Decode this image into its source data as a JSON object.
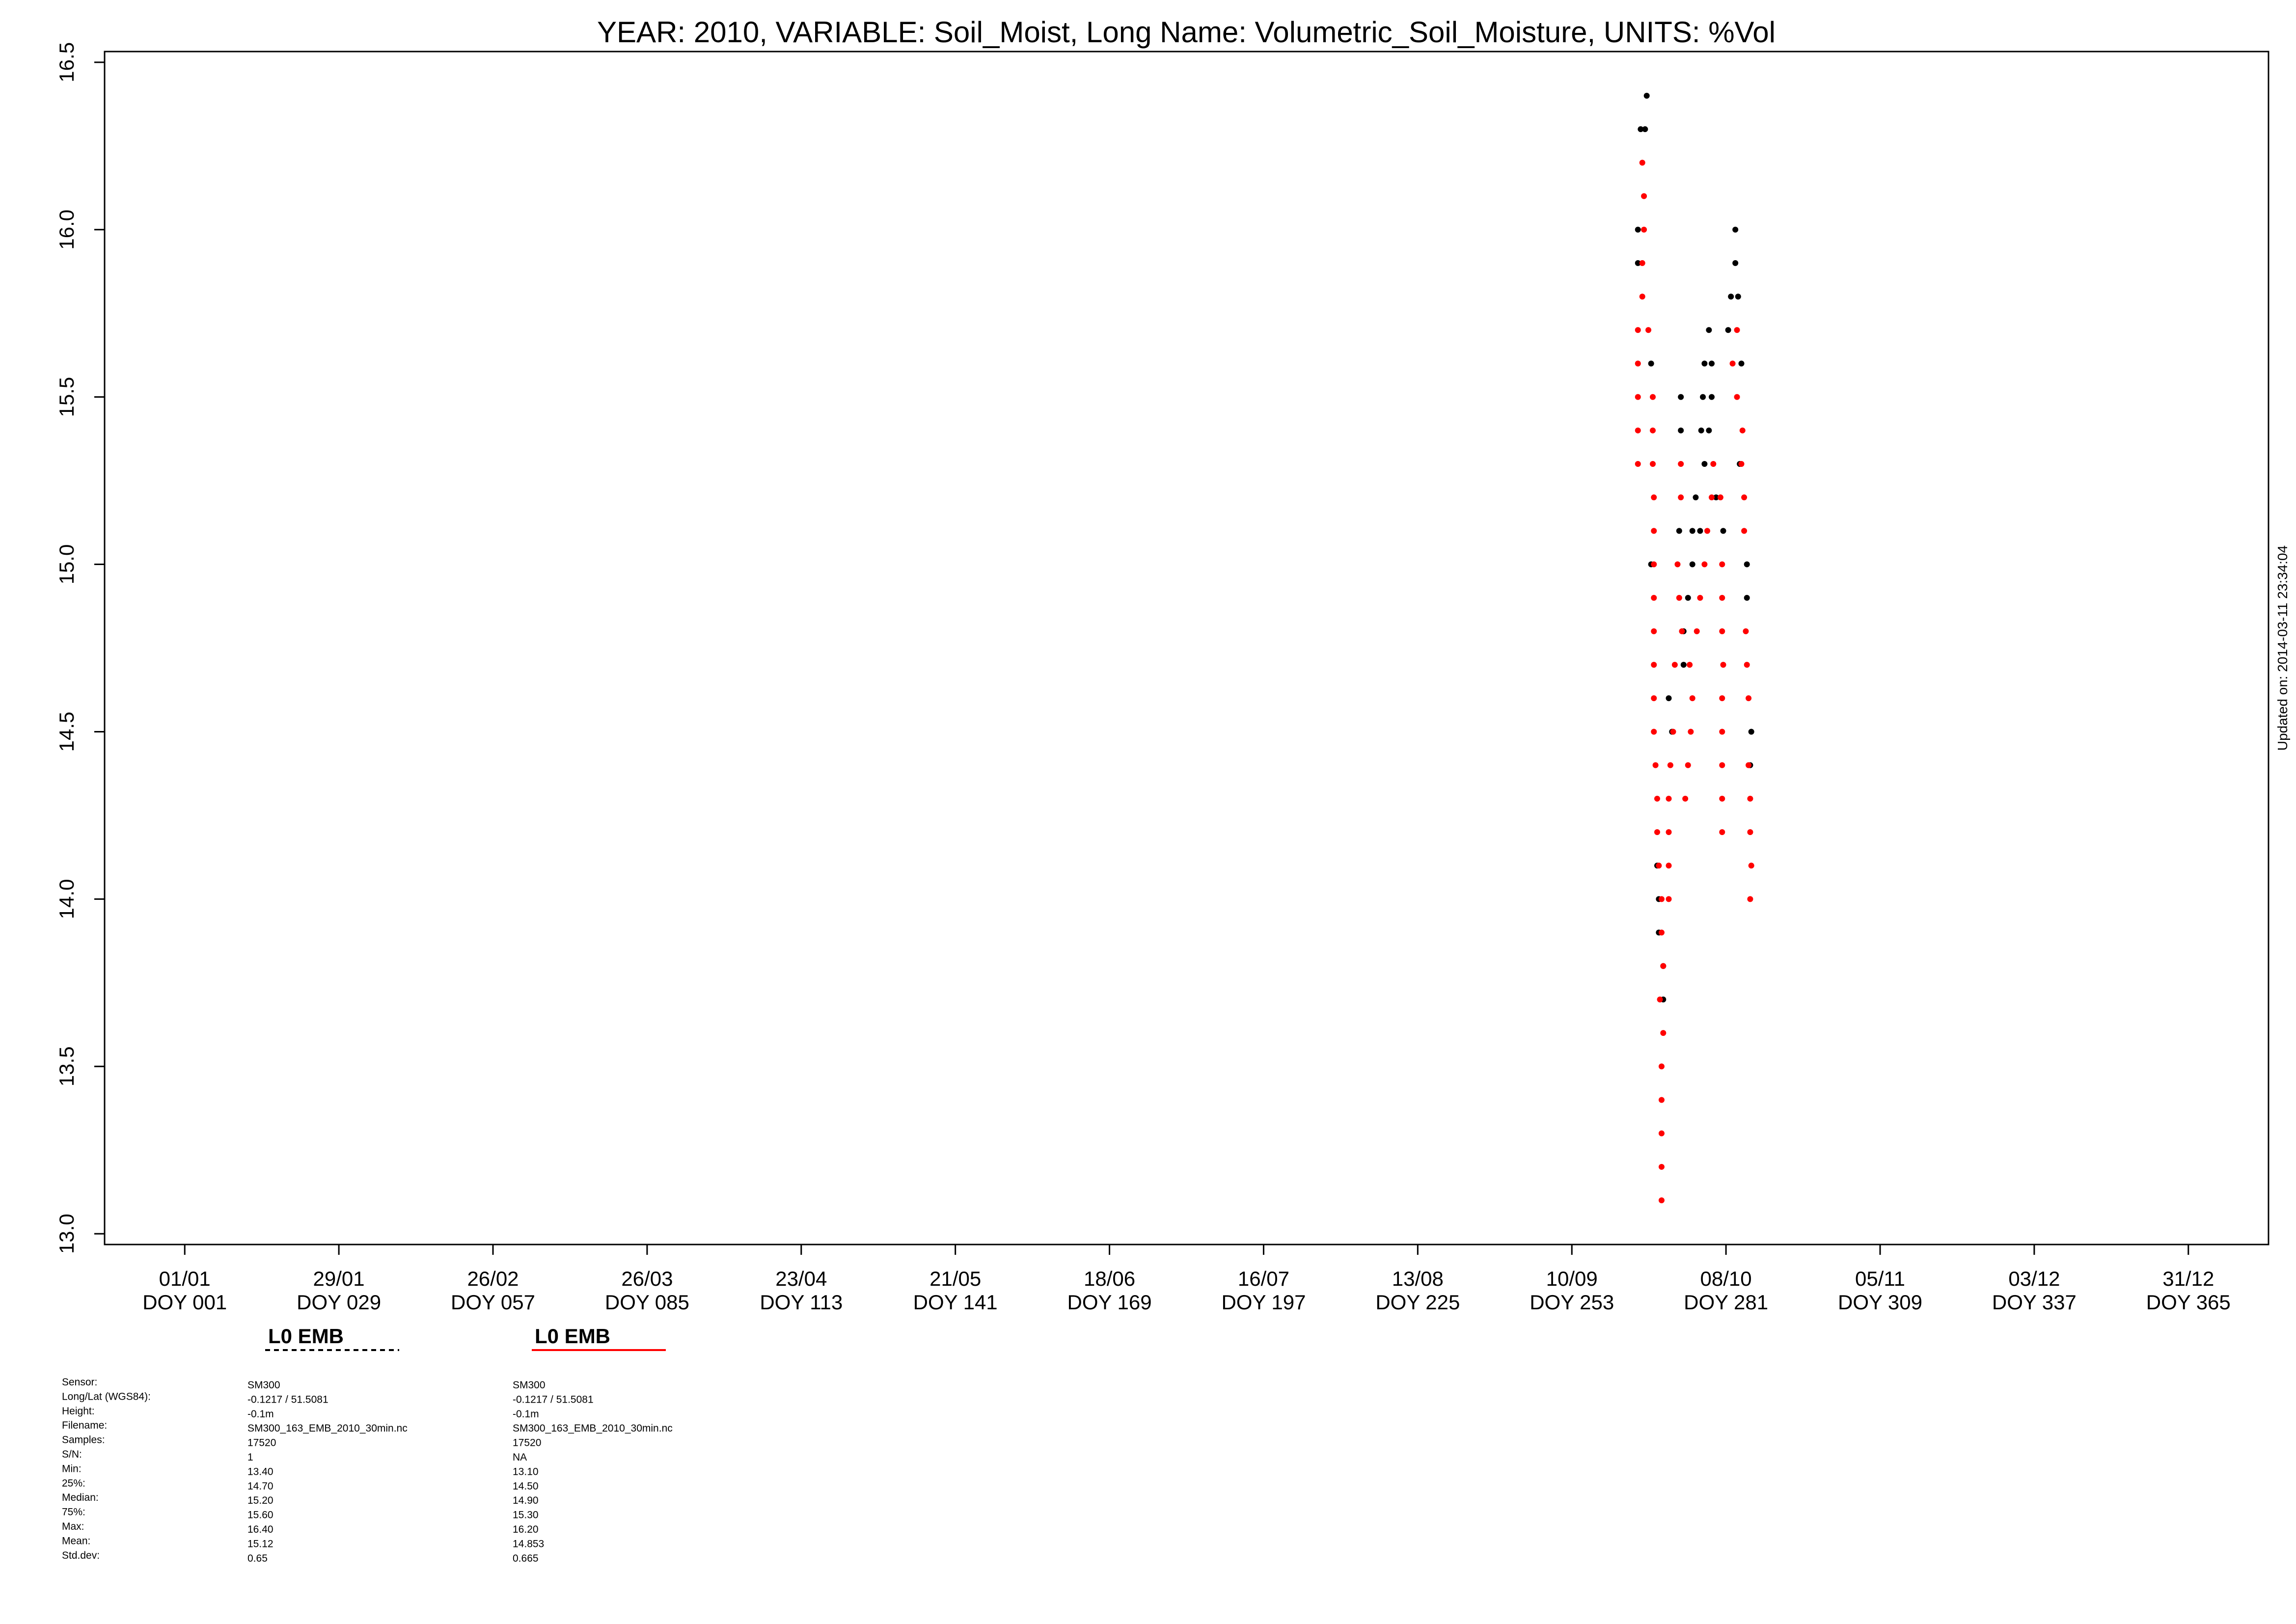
{
  "chart_data": {
    "type": "scatter",
    "title": "YEAR: 2010, VARIABLE: Soil_Moist, Long Name: Volumetric_Soil_Moisture, UNITS: %Vol",
    "side_note": "Updated on: 2014-03-11 23:34:04",
    "xlim": [
      -13.56,
      379.56
    ],
    "ylim": [
      12.968,
      16.532
    ],
    "xticks": [
      {
        "value": 1,
        "label": "01/01\nDOY 001"
      },
      {
        "value": 29,
        "label": "29/01\nDOY 029"
      },
      {
        "value": 57,
        "label": "26/02\nDOY 057"
      },
      {
        "value": 85,
        "label": "26/03\nDOY 085"
      },
      {
        "value": 113,
        "label": "23/04\nDOY 113"
      },
      {
        "value": 141,
        "label": "21/05\nDOY 141"
      },
      {
        "value": 169,
        "label": "18/06\nDOY 169"
      },
      {
        "value": 197,
        "label": "16/07\nDOY 197"
      },
      {
        "value": 225,
        "label": "13/08\nDOY 225"
      },
      {
        "value": 253,
        "label": "10/09\nDOY 253"
      },
      {
        "value": 281,
        "label": "08/10\nDOY 281"
      },
      {
        "value": 309,
        "label": "05/11\nDOY 309"
      },
      {
        "value": 337,
        "label": "03/12\nDOY 337"
      },
      {
        "value": 365,
        "label": "31/12\nDOY 365"
      }
    ],
    "yticks": [
      {
        "value": 13,
        "label": "13.0"
      },
      13.5,
      {
        "value": 14,
        "label": "14.0"
      },
      14.5,
      {
        "value": 15,
        "label": "15.0"
      },
      15.5,
      {
        "value": 16,
        "label": "16.0"
      },
      16.5
    ],
    "grid": false,
    "series": [
      {
        "name": "L0 EMB",
        "color": "#000000",
        "line_style": "dashed",
        "x": [
          266.6,
          265.5,
          266.3,
          265.0,
          265.0,
          267.4,
          272.8,
          272.8,
          267.4,
          270.6,
          271.2,
          268.5,
          268.8,
          268.8,
          269.6,
          269.6,
          277.9,
          277.1,
          278.4,
          276.8,
          278.4,
          276.5,
          277.9,
          277.1,
          275.5,
          274.9,
          276.3,
          274.1,
          273.3,
          282.7,
          282.7,
          281.9,
          283.2,
          281.4,
          283.8,
          283.5,
          284.8,
          284.8,
          285.6,
          285.4,
          274.9,
          273.3,
          272.5,
          279.2,
          280.5
        ],
        "values": [
          16.4,
          16.3,
          16.3,
          16.0,
          15.9,
          15.6,
          15.5,
          15.4,
          15.0,
          14.6,
          14.5,
          14.1,
          14.0,
          13.9,
          13.8,
          13.7,
          15.7,
          15.6,
          15.6,
          15.5,
          15.5,
          15.4,
          15.4,
          15.3,
          15.2,
          15.1,
          15.1,
          14.9,
          14.8,
          16.0,
          15.9,
          15.8,
          15.8,
          15.7,
          15.6,
          15.3,
          15.0,
          14.9,
          14.5,
          14.4,
          15.0,
          14.7,
          15.1,
          15.2,
          15.1
        ]
      },
      {
        "name": "L0 EMB",
        "color": "#ff0000",
        "line_style": "solid",
        "x": [
          265.8,
          266.1,
          266.1,
          265.8,
          265.8,
          265.0,
          266.9,
          265.0,
          265.0,
          267.7,
          265.0,
          267.7,
          265.0,
          267.7,
          267.9,
          267.9,
          267.9,
          267.9,
          267.9,
          267.9,
          267.9,
          267.9,
          268.2,
          268.5,
          268.5,
          268.8,
          269.3,
          269.3,
          269.6,
          269.0,
          269.6,
          269.3,
          269.3,
          269.3,
          269.3,
          269.3,
          272.8,
          272.8,
          272.2,
          272.5,
          273.0,
          271.7,
          271.4,
          270.9,
          270.6,
          270.6,
          270.6,
          270.6,
          274.4,
          274.9,
          274.6,
          274.1,
          273.6,
          275.7,
          276.3,
          277.1,
          277.6,
          278.4,
          278.7,
          280.0,
          280.3,
          280.3,
          280.3,
          280.5,
          280.3,
          280.3,
          280.3,
          280.3,
          280.3,
          282.2,
          283.0,
          283.0,
          284.0,
          283.8,
          284.3,
          284.3,
          284.6,
          284.8,
          285.1,
          285.1,
          285.4,
          285.4,
          285.6,
          285.4
        ],
        "values": [
          16.2,
          16.1,
          16.0,
          15.9,
          15.8,
          15.7,
          15.7,
          15.6,
          15.5,
          15.5,
          15.4,
          15.4,
          15.3,
          15.3,
          15.2,
          15.1,
          15.0,
          14.9,
          14.8,
          14.7,
          14.6,
          14.5,
          14.4,
          14.3,
          14.2,
          14.1,
          14.0,
          13.9,
          13.8,
          13.7,
          13.6,
          13.5,
          13.4,
          13.3,
          13.2,
          13.1,
          15.3,
          15.2,
          15.0,
          14.9,
          14.8,
          14.7,
          14.5,
          14.4,
          14.3,
          14.2,
          14.1,
          14.0,
          14.7,
          14.6,
          14.5,
          14.4,
          14.3,
          14.8,
          14.9,
          15.0,
          15.1,
          15.2,
          15.3,
          15.2,
          15.0,
          14.9,
          14.8,
          14.7,
          14.6,
          14.5,
          14.4,
          14.3,
          14.2,
          15.6,
          15.5,
          15.7,
          15.4,
          15.3,
          15.2,
          15.1,
          14.8,
          14.7,
          14.6,
          14.4,
          14.3,
          14.2,
          14.1,
          14.0
        ]
      }
    ]
  },
  "info": {
    "labels": [
      "Sensor:",
      "Long/Lat (WGS84):",
      "Height:",
      "Filename:",
      "Samples:",
      "S/N:",
      "Min:",
      "25%:",
      "Median:",
      "75%:",
      "Max:",
      "Mean:",
      "Std.dev:"
    ],
    "columns": [
      [
        "SM300",
        "-0.1217 / 51.5081",
        "-0.1m",
        "SM300_163_EMB_2010_30min.nc",
        "17520",
        "1",
        "13.40",
        "14.70",
        "15.20",
        "15.60",
        "16.40",
        "15.12",
        "0.65"
      ],
      [
        "SM300",
        "-0.1217 / 51.5081",
        "-0.1m",
        "SM300_163_EMB_2010_30min.nc",
        "17520",
        "NA",
        "13.10",
        "14.50",
        "14.90",
        "15.30",
        "16.20",
        "14.853",
        "0.665"
      ]
    ]
  }
}
